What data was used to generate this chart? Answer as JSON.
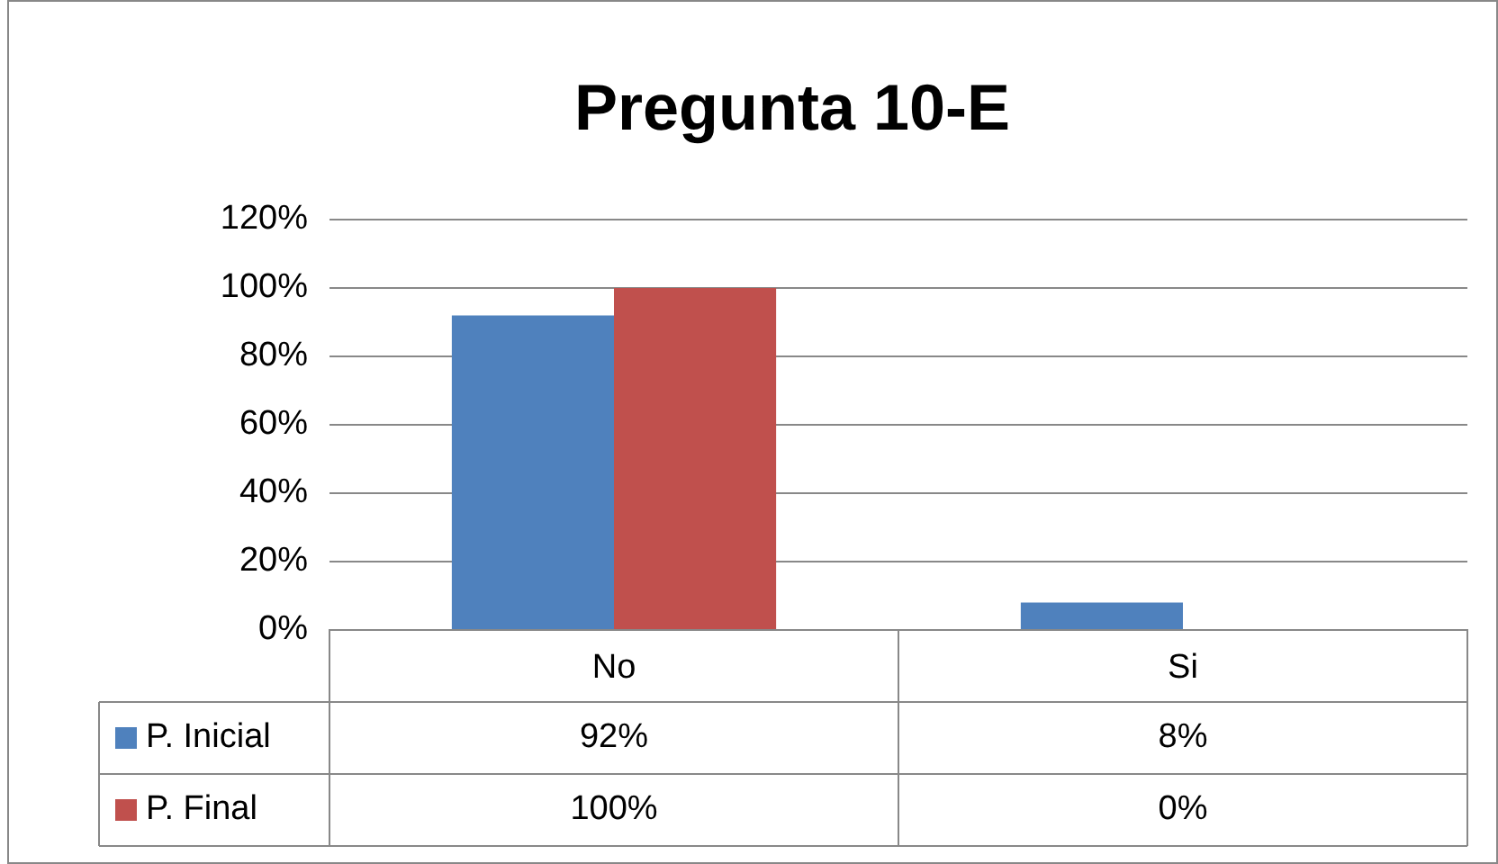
{
  "chart_data": {
    "type": "bar",
    "title": "Pregunta 10-E",
    "categories": [
      "No",
      "Si"
    ],
    "series": [
      {
        "name": "P. Inicial",
        "color": "#4f81bd",
        "values": [
          92,
          8
        ],
        "value_labels": [
          "92%",
          "8%"
        ]
      },
      {
        "name": "P. Final",
        "color": "#c0504d",
        "values": [
          100,
          0
        ],
        "value_labels": [
          "100%",
          "0%"
        ]
      }
    ],
    "ylim": [
      0,
      120
    ],
    "yticks": [
      {
        "value": 0,
        "label": "0%"
      },
      {
        "value": 20,
        "label": "20%"
      },
      {
        "value": 40,
        "label": "40%"
      },
      {
        "value": 60,
        "label": "60%"
      },
      {
        "value": 80,
        "label": "80%"
      },
      {
        "value": 100,
        "label": "100%"
      },
      {
        "value": 120,
        "label": "120%"
      }
    ],
    "grid": "y",
    "legend": "bottom"
  }
}
